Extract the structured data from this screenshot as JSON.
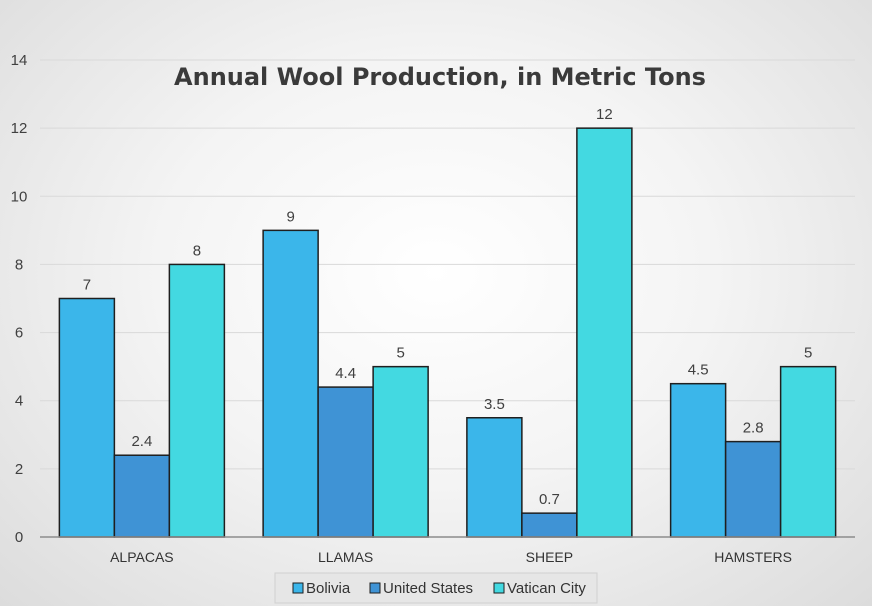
{
  "chart_data": {
    "type": "bar",
    "title": "Annual Wool Production, in Metric Tons",
    "categories": [
      "ALPACAS",
      "LLAMAS",
      "SHEEP",
      "HAMSTERS"
    ],
    "series": [
      {
        "name": "Bolivia",
        "values": [
          7,
          9,
          3.5,
          4.5
        ],
        "color": "#3bb6ea"
      },
      {
        "name": "United States",
        "values": [
          2.4,
          4.4,
          0.7,
          2.8
        ],
        "color": "#3f93d5"
      },
      {
        "name": "Vatican City",
        "values": [
          8,
          5,
          12,
          5
        ],
        "color": "#43d9e1"
      }
    ],
    "ylim": [
      0,
      14
    ],
    "yticks": [
      0,
      2,
      4,
      6,
      8,
      10,
      12,
      14
    ],
    "grid": true,
    "legend_position": "bottom",
    "data_labels": true
  }
}
